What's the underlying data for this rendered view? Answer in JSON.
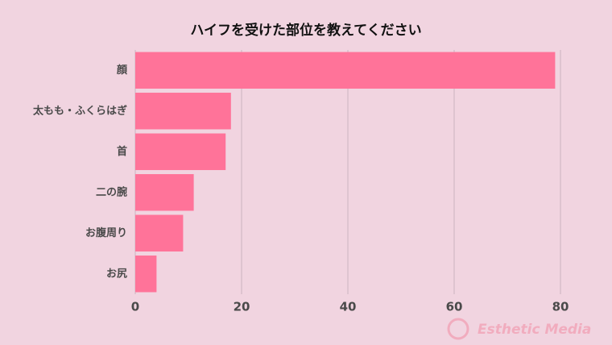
{
  "chart_data": {
    "type": "barh",
    "title": "ハイフを受けた部位を教えてください",
    "categories": [
      "顔",
      "太もも・ふくらはぎ",
      "首",
      "二の腕",
      "お腹周り",
      "お尻"
    ],
    "values": [
      79,
      18,
      17,
      11,
      9,
      4
    ],
    "color": "#ff7399",
    "xlim": [
      0,
      80
    ],
    "xticks": [
      0,
      20,
      40,
      60,
      80
    ],
    "grid": true,
    "watermark": "Esthetic Media"
  }
}
